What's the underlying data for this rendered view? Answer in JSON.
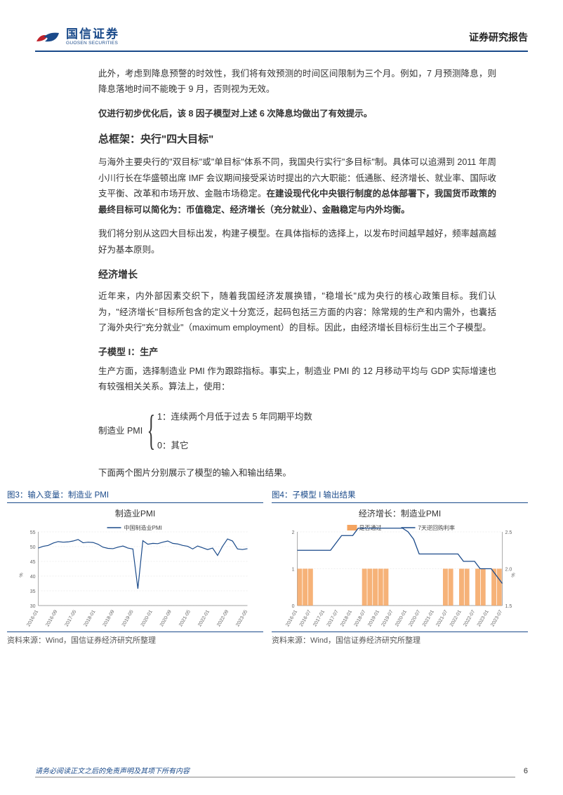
{
  "header": {
    "company_cn": "国信证券",
    "company_en": "GUOSEN SECURITIES",
    "doc_type": "证券研究报告",
    "logo_colors": {
      "red": "#c0222b",
      "blue": "#1a4a8a"
    }
  },
  "paragraphs": {
    "p1": "此外，考虑到降息预警的时效性，我们将有效预测的时间区间限制为三个月。例如，7 月预测降息，则降息落地时间不能晚于 9 月，否则视为无效。",
    "p2_bold": "仅进行初步优化后，该 8 因子模型对上述 6 次降息均做出了有效提示。",
    "h1": "总框架：央行\"四大目标\"",
    "p3a": "与海外主要央行的\"双目标\"或\"单目标\"体系不同，我国央行实行\"多目标\"制。具体可以追溯到 2011 年周小川行长在华盛顿出席 IMF 会议期间接受采访时提出的六大职能：低通胀、经济增长、就业率、国际收支平衡、改革和市场开放、金融市场稳定。",
    "p3b_bold": "在建设现代化中央银行制度的总体部署下，我国货币政策的最终目标可以简化为：币值稳定、经济增长（充分就业）、金融稳定与内外均衡。",
    "p4": "我们将分别从这四大目标出发，构建子模型。在具体指标的选择上，以发布时间越早越好，频率越高越好为基本原则。",
    "h2": "经济增长",
    "p5": "近年来，内外部因素交织下，随着我国经济发展换错，\"稳增长\"成为央行的核心政策目标。我们认为，\"经济增长\"目标所包含的定义十分宽泛，起码包括三方面的内容：除常规的生产和内需外，也囊括了海外央行\"充分就业\"（maximum employment）的目标。因此，由经济增长目标衍生出三个子模型。",
    "h3": "子模型 I：生产",
    "p6": "生产方面，选择制造业 PMI 作为跟踪指标。事实上，制造业 PMI 的 12 月移动平均与 GDP 实际增速也有较强相关关系。算法上，使用：",
    "formula_label": "制造业 PMI",
    "formula_case1": "1：连续两个月低于过去 5 年同期平均数",
    "formula_case0": "0：其它",
    "p7": "下面两个图片分别展示了模型的输入和输出结果。"
  },
  "figures": {
    "fig3": {
      "caption": "图3：输入变量：制造业 PMI",
      "title": "制造业PMI",
      "legend": "中国制造业PMI",
      "source": "资料来源：Wind，国信证券经济研究所整理",
      "line_color": "#1a4a8a",
      "grid_color": "#e0e0e0",
      "ylabel": "%",
      "ylim": [
        30,
        55
      ],
      "yticks": [
        30,
        35,
        40,
        45,
        50,
        55
      ],
      "x_labels": [
        "2016-01",
        "2016-09",
        "2017-05",
        "2018-01",
        "2018-09",
        "2019-05",
        "2020-01",
        "2020-09",
        "2021-05",
        "2022-01",
        "2022-09",
        "2023-05"
      ],
      "data": [
        49.5,
        50.1,
        50.4,
        51.2,
        51.7,
        51.5,
        51.6,
        51.9,
        52.4,
        51.3,
        51.5,
        51.4,
        50.8,
        49.8,
        49.4,
        49.3,
        49.8,
        50.2,
        49.5,
        49.2,
        35.7,
        52.0,
        50.8,
        51.1,
        51.0,
        51.5,
        51.9,
        51.1,
        50.9,
        50.4,
        50.1,
        49.2,
        50.2,
        49.6,
        49.0,
        49.5,
        47.0,
        50.1,
        52.6,
        51.9,
        49.2,
        49.0,
        49.3
      ]
    },
    "fig4": {
      "caption": "图4：子模型 I 输出结果",
      "title": "经济增长：制造业PMI",
      "legend_bar": "是否通过",
      "legend_line": "7天逆回购利率",
      "source": "资料来源：Wind，国信证券经济研究所整理",
      "bar_color": "#f4a460",
      "line_color": "#1a4a8a",
      "grid_color": "#e0e0e0",
      "y_left_label": "",
      "y_right_label": "%",
      "left_ylim": [
        0,
        2
      ],
      "left_yticks": [
        0,
        1,
        2
      ],
      "right_ylim": [
        1.5,
        2.5
      ],
      "right_yticks": [
        1.5,
        2.0,
        2.5
      ],
      "x_labels": [
        "2016-01",
        "2016-07",
        "2017-01",
        "2017-07",
        "2018-01",
        "2018-07",
        "2019-01",
        "2019-07",
        "2020-01",
        "2020-07",
        "2021-01",
        "2021-07",
        "2022-01",
        "2022-07",
        "2023-01",
        "2023-07"
      ],
      "bars": [
        1,
        1,
        1,
        0,
        0,
        0,
        0,
        0,
        0,
        0,
        0,
        0,
        1,
        1,
        1,
        1,
        1,
        0,
        0,
        0,
        0,
        0,
        0,
        0,
        0,
        0,
        0,
        1,
        1,
        0,
        1,
        1,
        0,
        1,
        1,
        0,
        1,
        1
      ],
      "line": [
        2.25,
        2.25,
        2.25,
        2.25,
        2.25,
        2.25,
        2.25,
        2.35,
        2.45,
        2.45,
        2.45,
        2.55,
        2.55,
        2.55,
        2.55,
        2.55,
        2.55,
        2.55,
        2.55,
        2.55,
        2.5,
        2.4,
        2.2,
        2.2,
        2.2,
        2.2,
        2.2,
        2.2,
        2.2,
        2.2,
        2.1,
        2.1,
        2.1,
        2.0,
        2.0,
        2.0,
        1.9,
        1.8
      ]
    }
  },
  "footer": {
    "disclaimer": "请务必阅读正文之后的免责声明及其项下所有内容",
    "page": "6"
  }
}
